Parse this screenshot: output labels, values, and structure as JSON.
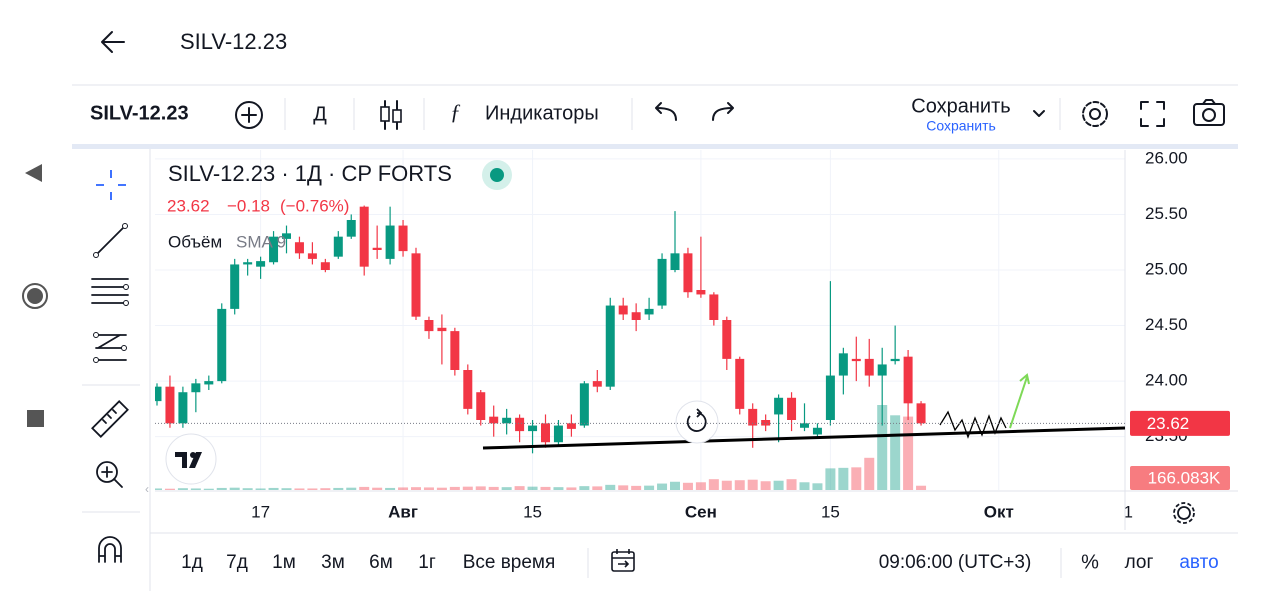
{
  "header": {
    "title": "SILV-12.23"
  },
  "toolbar": {
    "symbol": "SILV-12.23",
    "interval": "Д",
    "indicators": "Индикаторы",
    "save": "Сохранить",
    "save_sub": "Сохранить"
  },
  "chart_data": {
    "type": "candlestick",
    "title": "SILV-12.23 · 1Д · CP FORTS",
    "legend": {
      "close": "23.62",
      "change": "−0.18",
      "change_pct": "(−0.76%)",
      "volume": "Объём",
      "volume_study": "SMA 9"
    },
    "categories": [
      null,
      null,
      null,
      null,
      null,
      null,
      null,
      null,
      "17",
      null,
      null,
      null,
      null,
      null,
      null,
      null,
      null,
      null,
      null,
      "Авг",
      null,
      null,
      null,
      null,
      null,
      null,
      null,
      null,
      null,
      "15",
      null,
      null,
      null,
      null,
      null,
      null,
      null,
      null,
      null,
      null,
      null,
      null,
      "Сен",
      null,
      null,
      null,
      null,
      null,
      null,
      null,
      null,
      null,
      "15",
      null,
      null,
      null,
      null,
      null,
      null,
      null,
      null,
      null,
      null,
      null,
      null,
      "Окт",
      null,
      null,
      null,
      null,
      null,
      null,
      null,
      null,
      null,
      "1"
    ],
    "open": [
      23.82,
      23.95,
      23.62,
      23.9,
      23.97,
      24.0,
      24.65,
      25.05,
      25.03,
      25.07,
      25.28,
      25.25,
      25.15,
      25.07,
      25.12,
      25.3,
      25.57,
      25.2,
      25.1,
      25.4,
      25.15,
      24.55,
      24.48,
      24.45,
      24.1,
      23.9,
      23.68,
      23.62,
      23.67,
      23.55,
      23.62,
      23.45,
      23.62,
      23.6,
      24.0,
      23.95,
      24.68,
      24.62,
      24.6,
      24.68,
      25.0,
      25.15,
      24.82,
      24.78,
      24.55,
      24.2,
      23.75,
      23.65,
      23.7,
      23.85,
      23.58,
      23.52,
      23.65,
      24.05,
      24.2,
      24.2,
      24.05,
      24.18,
      24.22,
      23.8,
      null,
      null,
      null,
      null,
      null,
      null,
      null,
      null,
      null,
      null,
      null,
      null,
      null,
      null,
      null,
      null
    ],
    "high": [
      23.98,
      24.05,
      23.95,
      24.02,
      24.05,
      24.7,
      25.1,
      25.1,
      25.12,
      25.35,
      25.4,
      25.3,
      25.25,
      25.1,
      25.35,
      25.5,
      25.58,
      25.4,
      25.57,
      25.45,
      25.2,
      24.58,
      24.6,
      24.48,
      24.15,
      23.92,
      23.78,
      23.75,
      23.7,
      23.65,
      23.7,
      23.65,
      23.7,
      24.0,
      24.1,
      24.75,
      24.75,
      24.7,
      24.75,
      25.15,
      25.53,
      25.2,
      25.3,
      24.8,
      24.58,
      24.22,
      23.8,
      23.7,
      23.88,
      23.9,
      23.8,
      23.62,
      24.9,
      24.3,
      24.4,
      24.38,
      24.3,
      24.5,
      24.28,
      23.82,
      null,
      null,
      null,
      null,
      null,
      null,
      null,
      null,
      null,
      null,
      null,
      null,
      null,
      null,
      null,
      null
    ],
    "low": [
      23.78,
      23.58,
      23.58,
      23.72,
      23.92,
      23.98,
      24.6,
      24.95,
      24.92,
      25.05,
      25.15,
      25.1,
      25.05,
      24.98,
      25.1,
      25.28,
      24.95,
      25.1,
      25.05,
      25.12,
      24.55,
      24.38,
      24.15,
      24.05,
      23.7,
      23.6,
      23.5,
      23.52,
      23.45,
      23.35,
      23.4,
      23.42,
      23.5,
      23.58,
      23.9,
      23.92,
      24.55,
      24.45,
      24.55,
      24.65,
      24.98,
      24.75,
      24.75,
      24.5,
      24.1,
      23.7,
      23.4,
      23.55,
      23.45,
      23.55,
      23.55,
      23.48,
      23.6,
      23.88,
      24.0,
      23.95,
      23.6,
      24.15,
      23.65,
      23.6,
      null,
      null,
      null,
      null,
      null,
      null,
      null,
      null,
      null,
      null,
      null,
      null,
      null,
      null,
      null,
      null
    ],
    "close": [
      23.95,
      23.62,
      23.9,
      23.98,
      24.0,
      24.65,
      25.05,
      25.07,
      25.08,
      25.3,
      25.33,
      25.15,
      25.1,
      25.0,
      25.3,
      25.45,
      25.03,
      25.18,
      25.4,
      25.17,
      24.58,
      24.45,
      24.45,
      24.1,
      23.75,
      23.65,
      23.62,
      23.67,
      23.55,
      23.6,
      23.45,
      23.6,
      23.57,
      23.98,
      23.95,
      24.68,
      24.6,
      24.55,
      24.65,
      25.1,
      25.15,
      24.8,
      24.78,
      24.55,
      24.2,
      23.75,
      23.6,
      23.6,
      23.85,
      23.65,
      23.62,
      23.58,
      24.05,
      24.25,
      24.18,
      24.05,
      24.15,
      24.2,
      23.8,
      23.62,
      null,
      null,
      null,
      null,
      null,
      null,
      null,
      null,
      null,
      null,
      null,
      null,
      null,
      null,
      null,
      null
    ],
    "volume": [
      60000,
      50000,
      70000,
      60000,
      50000,
      80000,
      90000,
      70000,
      60000,
      80000,
      70000,
      60000,
      60000,
      70000,
      80000,
      90000,
      120000,
      90000,
      80000,
      100000,
      110000,
      100000,
      90000,
      120000,
      130000,
      140000,
      120000,
      110000,
      150000,
      130000,
      120000,
      110000,
      100000,
      150000,
      140000,
      200000,
      180000,
      160000,
      170000,
      250000,
      320000,
      280000,
      300000,
      420000,
      360000,
      380000,
      400000,
      340000,
      360000,
      420000,
      300000,
      260000,
      840000,
      860000,
      880000,
      1250000,
      3300000,
      2900000,
      2850000,
      166083,
      null,
      null,
      null,
      null,
      null,
      null,
      null,
      null,
      null,
      null,
      null,
      null,
      null,
      null,
      null,
      null
    ],
    "up_color": "#089981",
    "down_color": "#f23645",
    "ylim": [
      23.02,
      26.08
    ],
    "yticks": [
      {
        "value": 23.5,
        "label": "23.50"
      },
      {
        "value": 24,
        "label": "24.00"
      },
      {
        "value": 24.5,
        "label": "24.50"
      },
      {
        "value": 25,
        "label": "25.00"
      },
      {
        "value": 25.5,
        "label": "25.50"
      },
      {
        "value": 26,
        "label": "26.00"
      }
    ],
    "last_price": {
      "value": 23.62,
      "label": "23.62"
    },
    "last_volume": {
      "value": 166083,
      "label": "166.083K"
    },
    "grid": true
  },
  "ranges": [
    "1д",
    "7д",
    "1м",
    "3м",
    "6м",
    "1г",
    "Все время"
  ],
  "footer": {
    "time": "09:06:00 (UTC+3)",
    "percent": "%",
    "log": "лог",
    "auto": "авто"
  }
}
